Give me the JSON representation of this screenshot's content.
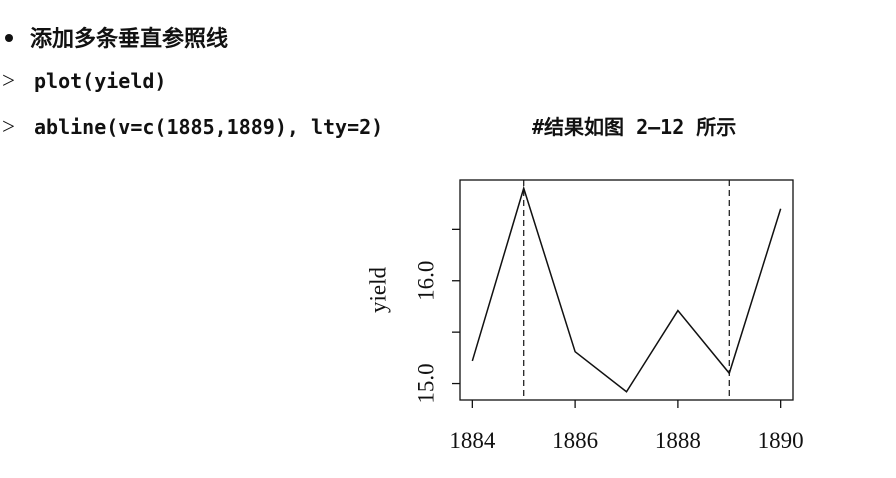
{
  "heading": "添加多条垂直参照线",
  "code": [
    {
      "prompt": ">",
      "text": "plot(yield)"
    },
    {
      "prompt": ">",
      "text": "abline(v=c(1885,1889), lty=2)",
      "comment": "#结果如图 2—12 所示"
    }
  ],
  "chart_data": {
    "type": "line",
    "ylabel": "yield",
    "x": [
      1884,
      1885,
      1886,
      1887,
      1888,
      1889,
      1890
    ],
    "values": [
      15.22,
      16.9,
      15.31,
      14.92,
      15.71,
      15.1,
      16.7
    ],
    "color": "#111111",
    "xlim": [
      1883.76,
      1890.24
    ],
    "xticks": [
      1884,
      1886,
      1888,
      1890
    ],
    "ylim": [
      14.84,
      16.98
    ],
    "yticks": [
      {
        "value": 15,
        "label": "15.0"
      },
      {
        "value": 15.5,
        "label": null
      },
      {
        "value": 16,
        "label": "16.0"
      },
      {
        "value": 16.5,
        "label": null
      }
    ],
    "vlines": [
      1885,
      1889
    ],
    "vline_style": "dashed"
  }
}
